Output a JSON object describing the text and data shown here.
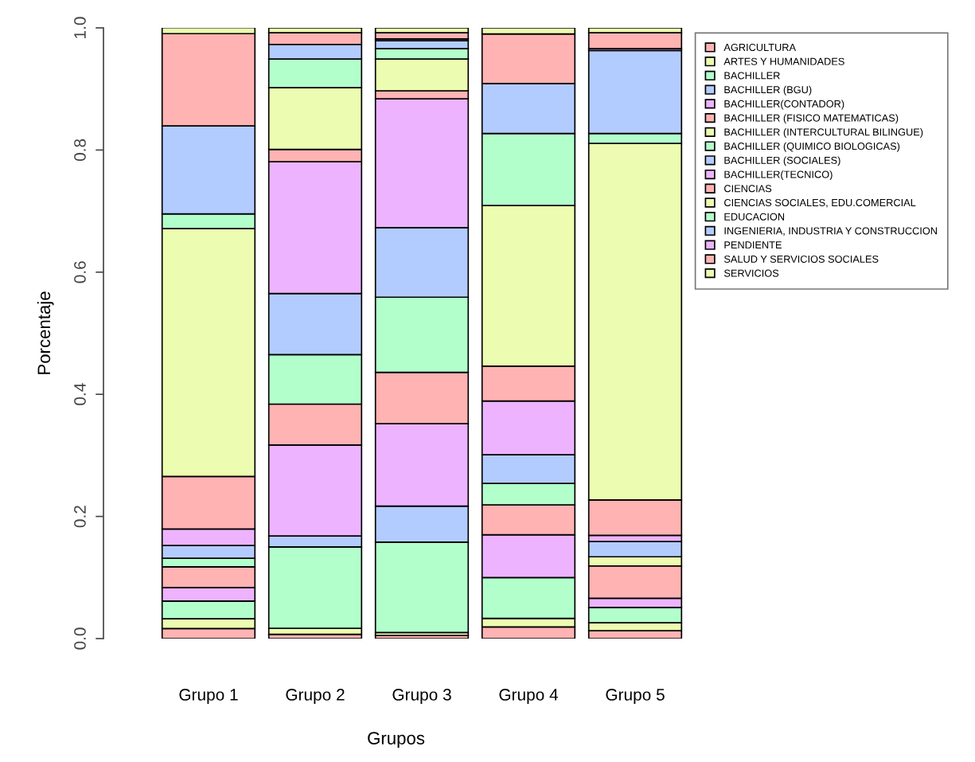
{
  "chart_data": {
    "type": "bar",
    "stacked": true,
    "xlabel": "Grupos",
    "ylabel": "Porcentaje",
    "categories": [
      "Grupo 1",
      "Grupo 2",
      "Grupo 3",
      "Grupo 4",
      "Grupo 5"
    ],
    "ylim": [
      0,
      1
    ],
    "yticks": [
      {
        "value": 0,
        "label": "0.0"
      },
      {
        "value": 0.2,
        "label": "0.2"
      },
      {
        "value": 0.4,
        "label": "0.4"
      },
      {
        "value": 0.6,
        "label": "0.6"
      },
      {
        "value": 0.8,
        "label": "0.8"
      },
      {
        "value": 1,
        "label": "1.0"
      }
    ],
    "grid": false,
    "legend": "top right",
    "series": [
      {
        "name": "AGRICULTURA",
        "color": "#ffb3b3",
        "values": [
          0.0165,
          0.007,
          0.005,
          0.019,
          0.013
        ]
      },
      {
        "name": "ARTES Y HUMANIDADES",
        "color": "#ecfcb0",
        "values": [
          0.016,
          0.01,
          0.005,
          0.014,
          0.013
        ]
      },
      {
        "name": "BACHILLER",
        "color": "#b3ffcc",
        "values": [
          0.029,
          0.133,
          0.148,
          0.067,
          0.025
        ]
      },
      {
        "name": "BACHILLER (BGU)",
        "color": "#b3ccff",
        "values": [
          0,
          0.018,
          0.059,
          0,
          0
        ]
      },
      {
        "name": "BACHILLER(CONTADOR)",
        "color": "#edb3ff",
        "values": [
          0.022,
          0.149,
          0.135,
          0.07,
          0.015
        ]
      },
      {
        "name": "BACHILLER (FISICO MATEMATICAS)",
        "color": "#ffb3b3",
        "values": [
          0.034,
          0.067,
          0.084,
          0.049,
          0.053
        ]
      },
      {
        "name": "BACHILLER (INTERCULTURAL BILINGUE)",
        "color": "#ecfcb0",
        "values": [
          0,
          0,
          0,
          0,
          0.015
        ]
      },
      {
        "name": "BACHILLER (QUIMICO BIOLOGICAS)",
        "color": "#b3ffcc",
        "values": [
          0.014,
          0.081,
          0.123,
          0.035,
          0
        ]
      },
      {
        "name": "BACHILLER (SOCIALES)",
        "color": "#b3ccff",
        "values": [
          0.021,
          0.1,
          0.114,
          0.047,
          0.025
        ]
      },
      {
        "name": "BACHILLER(TECNICO)",
        "color": "#edb3ff",
        "values": [
          0.027,
          0.216,
          0.211,
          0.088,
          0.01
        ]
      },
      {
        "name": "CIENCIAS",
        "color": "#ffb3b3",
        "values": [
          0.086,
          0.02,
          0.013,
          0.057,
          0.058
        ]
      },
      {
        "name": "CIENCIAS SOCIALES, EDU.COMERCIAL",
        "color": "#ecfcb0",
        "values": [
          0.406,
          0.101,
          0.052,
          0.263,
          0.584
        ]
      },
      {
        "name": "EDUCACION",
        "color": "#b3ffcc",
        "values": [
          0.024,
          0.047,
          0.017,
          0.118,
          0.016
        ]
      },
      {
        "name": "INGENIERIA, INDUSTRIA Y CONSTRUCCION",
        "color": "#b3ccff",
        "values": [
          0.144,
          0.024,
          0.013,
          0.082,
          0.136
        ]
      },
      {
        "name": "PENDIENTE",
        "color": "#edb3ff",
        "values": [
          0,
          0,
          0.003,
          0,
          0.003
        ]
      },
      {
        "name": "SALUD Y SERVICIOS SOCIALES",
        "color": "#ffb3b3",
        "values": [
          0.151,
          0.019,
          0.01,
          0.081,
          0.026
        ]
      },
      {
        "name": "SERVICIOS",
        "color": "#ecfcb0",
        "values": [
          0.01,
          0.008,
          0.008,
          0.01,
          0.008
        ]
      }
    ]
  }
}
